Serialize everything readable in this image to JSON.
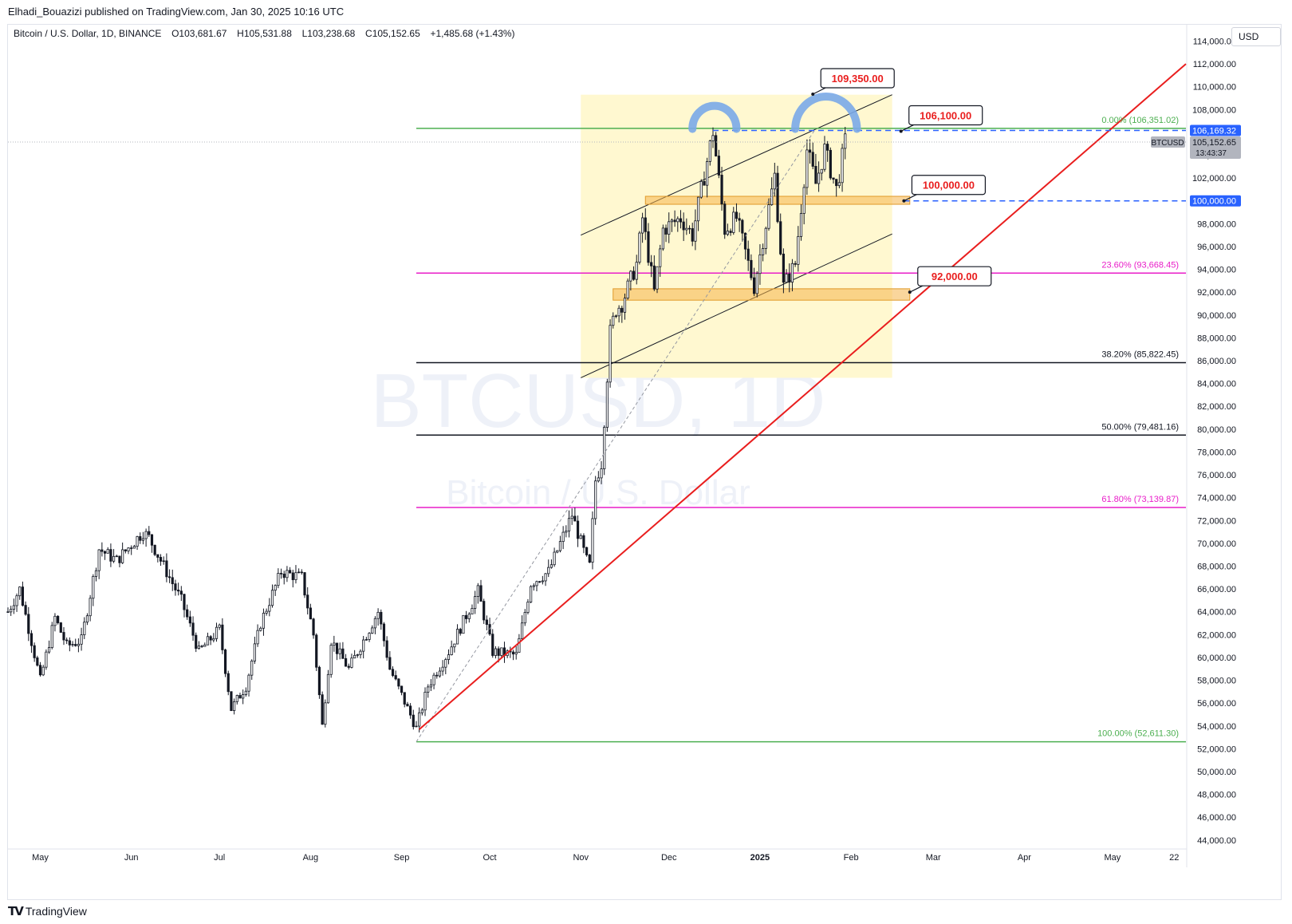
{
  "publisher_line": "Elhadi_Bouazizi published on TradingView.com, Jan 30, 2025 10:16 UTC",
  "brand": {
    "logo_icon": "tradingview-logo-icon",
    "name": "TradingView"
  },
  "legend": {
    "symbol_text": "Bitcoin / U.S. Dollar, 1D, BINANCE",
    "open_label": "O",
    "open": "103,681.67",
    "high_label": "H",
    "high": "105,531.88",
    "low_label": "L",
    "low": "103,238.68",
    "close_label": "C",
    "close": "105,152.65",
    "change": "+1,485.68 (+1.43%)"
  },
  "currency": "USD",
  "watermark": {
    "symbol": "BTCUSD, 1D",
    "description": "Bitcoin / U.S. Dollar"
  },
  "chart_data": {
    "type": "candlestick",
    "symbol": "BTCUSD",
    "timeframe": "1D",
    "exchange": "BINANCE",
    "y_range": [
      43500,
      115500
    ],
    "y_ticks": [
      44000,
      46000,
      48000,
      50000,
      52000,
      54000,
      56000,
      58000,
      60000,
      62000,
      64000,
      66000,
      68000,
      70000,
      72000,
      74000,
      76000,
      78000,
      80000,
      82000,
      84000,
      86000,
      88000,
      90000,
      92000,
      94000,
      96000,
      98000,
      100000,
      102000,
      104000,
      106000,
      108000,
      110000,
      112000,
      114000
    ],
    "y_tick_labels": [
      "44,000.00",
      "46,000.00",
      "48,000.00",
      "50,000.00",
      "52,000.00",
      "54,000.00",
      "56,000.00",
      "58,000.00",
      "60,000.00",
      "62,000.00",
      "64,000.00",
      "66,000.00",
      "68,000.00",
      "70,000.00",
      "72,000.00",
      "74,000.00",
      "76,000.00",
      "78,000.00",
      "80,000.00",
      "82,000.00",
      "84,000.00",
      "86,000.00",
      "88,000.00",
      "90,000.00",
      "92,000.00",
      "94,000.00",
      "96,000.00",
      "98,000.00",
      "100,000.00",
      "102,000.00",
      "104,000.00",
      "106,000.00",
      "108,000.00",
      "110,000.00",
      "112,000.00",
      "114,000.00"
    ],
    "x_range": [
      "2024-04-20",
      "2025-05-26"
    ],
    "x_ticks": [
      {
        "label": "May",
        "date": "2024-05-01"
      },
      {
        "label": "Jun",
        "date": "2024-06-01"
      },
      {
        "label": "Jul",
        "date": "2024-07-01"
      },
      {
        "label": "Aug",
        "date": "2024-08-01"
      },
      {
        "label": "Sep",
        "date": "2024-09-01"
      },
      {
        "label": "Oct",
        "date": "2024-10-01"
      },
      {
        "label": "Nov",
        "date": "2024-11-01"
      },
      {
        "label": "Dec",
        "date": "2024-12-01"
      },
      {
        "label": "2025",
        "date": "2025-01-01"
      },
      {
        "label": "Feb",
        "date": "2025-02-01"
      },
      {
        "label": "Mar",
        "date": "2025-03-01"
      },
      {
        "label": "Apr",
        "date": "2025-04-01"
      },
      {
        "label": "May",
        "date": "2025-05-01"
      },
      {
        "label": "22",
        "date": "2025-05-22"
      }
    ],
    "price_path": [
      [
        "2024-04-20",
        64000
      ],
      [
        "2024-04-24",
        66000
      ],
      [
        "2024-05-01",
        58000
      ],
      [
        "2024-05-06",
        63500
      ],
      [
        "2024-05-10",
        61000
      ],
      [
        "2024-05-15",
        61500
      ],
      [
        "2024-05-21",
        69500
      ],
      [
        "2024-05-27",
        68500
      ],
      [
        "2024-06-05",
        71000
      ],
      [
        "2024-06-07",
        70500
      ],
      [
        "2024-06-12",
        68000
      ],
      [
        "2024-06-18",
        65000
      ],
      [
        "2024-06-24",
        60500
      ],
      [
        "2024-07-01",
        62500
      ],
      [
        "2024-07-05",
        55500
      ],
      [
        "2024-07-10",
        57500
      ],
      [
        "2024-07-15",
        63000
      ],
      [
        "2024-07-22",
        67500
      ],
      [
        "2024-07-29",
        67000
      ],
      [
        "2024-08-02",
        62000
      ],
      [
        "2024-08-05",
        54000
      ],
      [
        "2024-08-08",
        61500
      ],
      [
        "2024-08-14",
        59000
      ],
      [
        "2024-08-24",
        64000
      ],
      [
        "2024-08-28",
        59000
      ],
      [
        "2024-09-06",
        53800
      ],
      [
        "2024-09-10",
        57500
      ],
      [
        "2024-09-17",
        60500
      ],
      [
        "2024-09-27",
        65800
      ],
      [
        "2024-10-02",
        60500
      ],
      [
        "2024-10-10",
        60200
      ],
      [
        "2024-10-15",
        66500
      ],
      [
        "2024-10-21",
        67500
      ],
      [
        "2024-10-29",
        72500
      ],
      [
        "2024-11-03",
        68500
      ],
      [
        "2024-11-04",
        68000
      ],
      [
        "2024-11-06",
        75500
      ],
      [
        "2024-11-08",
        77000
      ],
      [
        "2024-11-11",
        88500
      ],
      [
        "2024-11-13",
        90500
      ],
      [
        "2024-11-15",
        91000
      ],
      [
        "2024-11-20",
        94500
      ],
      [
        "2024-11-22",
        98500
      ],
      [
        "2024-11-26",
        92000
      ],
      [
        "2024-11-29",
        97500
      ],
      [
        "2024-12-05",
        98500
      ],
      [
        "2024-12-09",
        97000
      ],
      [
        "2024-12-16",
        106100
      ],
      [
        "2024-12-20",
        97500
      ],
      [
        "2024-12-24",
        98500
      ],
      [
        "2024-12-30",
        92500
      ],
      [
        "2025-01-03",
        98000
      ],
      [
        "2025-01-06",
        102200
      ],
      [
        "2025-01-09",
        92500
      ],
      [
        "2025-01-13",
        94500
      ],
      [
        "2025-01-17",
        104500
      ],
      [
        "2025-01-20",
        101500
      ],
      [
        "2025-01-23",
        104500
      ],
      [
        "2025-01-27",
        101000
      ],
      [
        "2025-01-30",
        105150
      ]
    ],
    "horizontal_lines": [
      {
        "price": 106351.02,
        "color": "#4caf50",
        "label": "0.00% (106,351.02)"
      },
      {
        "price": 93668.45,
        "color": "#e91ec9",
        "label": "23.60% (93,668.45)"
      },
      {
        "price": 85822.45,
        "color": "#131722",
        "label": "38.20% (85,822.45)"
      },
      {
        "price": 79481.16,
        "color": "#131722",
        "label": "50.00% (79,481.16)"
      },
      {
        "price": 73139.87,
        "color": "#e91ec9",
        "label": "61.80% (73,139.87)"
      },
      {
        "price": 52611.3,
        "color": "#4caf50",
        "label": "100.00% (52,611.30)"
      }
    ],
    "dashed_levels": [
      {
        "price": 106169.32,
        "color": "#2962ff",
        "label": "106,169.32",
        "from": "2024-12-16"
      },
      {
        "price": 100000.0,
        "color": "#2962ff",
        "label": "100,000.00",
        "from": "2025-02-19"
      }
    ],
    "zones": [
      {
        "from": "2024-11-23",
        "to": "2025-02-21",
        "low": 99700,
        "high": 100400,
        "color": "#f5b54a"
      },
      {
        "from": "2024-11-12",
        "to": "2025-02-21",
        "low": 91300,
        "high": 92300,
        "color": "#f5b54a"
      }
    ],
    "channel": {
      "upper": [
        [
          "2024-11-01",
          97000
        ],
        [
          "2025-02-15",
          109300
        ]
      ],
      "lower": [
        [
          "2024-11-01",
          84500
        ],
        [
          "2025-02-15",
          97100
        ]
      ],
      "fill_from": "2024-11-01",
      "fill_to": "2025-02-15",
      "fill_color": "#fff8d0"
    },
    "trendline": {
      "from": [
        "2024-09-07",
        53700
      ],
      "to": [
        "2025-05-26",
        112000
      ],
      "color": "#e91e1e"
    },
    "fib_diagonal": {
      "from": [
        "2024-09-06",
        52611.3
      ],
      "to": [
        "2025-01-20",
        106351.02
      ]
    },
    "callouts": [
      {
        "text": "109,350.00",
        "price": 109350,
        "date": "2025-01-19"
      },
      {
        "text": "106,100.00",
        "price": 106100,
        "date": "2025-02-18"
      },
      {
        "text": "100,000.00",
        "price": 100000,
        "date": "2025-02-19"
      },
      {
        "text": "92,000.00",
        "price": 92000,
        "date": "2025-02-21"
      }
    ],
    "arcs": [
      {
        "from": "2024-12-09",
        "to": "2024-12-24",
        "price": 106300
      },
      {
        "from": "2025-01-13",
        "to": "2025-02-03",
        "price": 106300
      }
    ],
    "last_price": {
      "symbol": "BTCUSD",
      "price": 105152.65,
      "label": "105,152.65",
      "countdown": "13:43:37"
    }
  }
}
